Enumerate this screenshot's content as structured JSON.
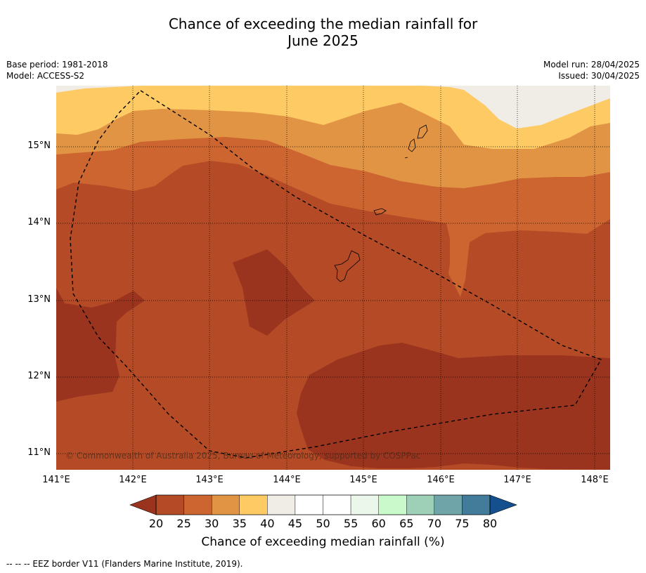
{
  "title_line1": "Chance of exceeding the median rainfall for",
  "title_line2": "June 2025",
  "meta_left": [
    "Base period: 1981-2018",
    "Model: ACCESS-S2"
  ],
  "meta_right": [
    "Model run: 28/04/2025",
    "Issued: 30/04/2025"
  ],
  "lat_labels": [
    "15°N",
    "14°N",
    "13°N",
    "12°N",
    "11°N"
  ],
  "lon_labels": [
    "141°E",
    "142°E",
    "143°E",
    "144°E",
    "145°E",
    "146°E",
    "147°E",
    "148°E"
  ],
  "copyright": "© Commonwealth of Australia 2025, Bureau of Meteorology, supported by COSPPac",
  "colorbar": {
    "ticks": [
      "20",
      "25",
      "30",
      "35",
      "40",
      "45",
      "50",
      "55",
      "60",
      "65",
      "70",
      "75",
      "80"
    ],
    "colors": [
      "#9a341f",
      "#b44b26",
      "#cc6530",
      "#e19444",
      "#fdca64",
      "#f0ece6",
      "#ffffff",
      "#ffffff",
      "#eaf7ea",
      "#caf9cc",
      "#9ecfb7",
      "#6fa5a8",
      "#427c9a",
      "#13508d"
    ],
    "label": "Chance of exceeding median rainfall (%)"
  },
  "footnote": "--  --  -- EEZ border V11 (Flanders Marine Institute, 2019).",
  "map_colors": {
    "below20": "#9a341f",
    "c20_25": "#b44b26",
    "c25_30": "#cc6530",
    "c30_35": "#e19444",
    "c35_40": "#fdca64",
    "c40_45": "#f0ece6"
  }
}
